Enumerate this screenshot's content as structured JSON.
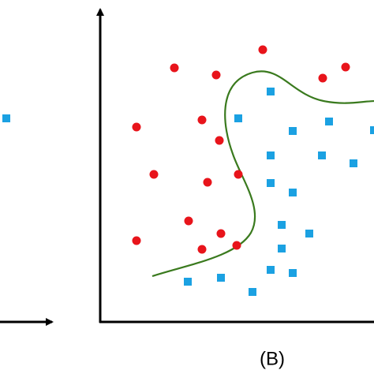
{
  "caption": "(B)"
}
